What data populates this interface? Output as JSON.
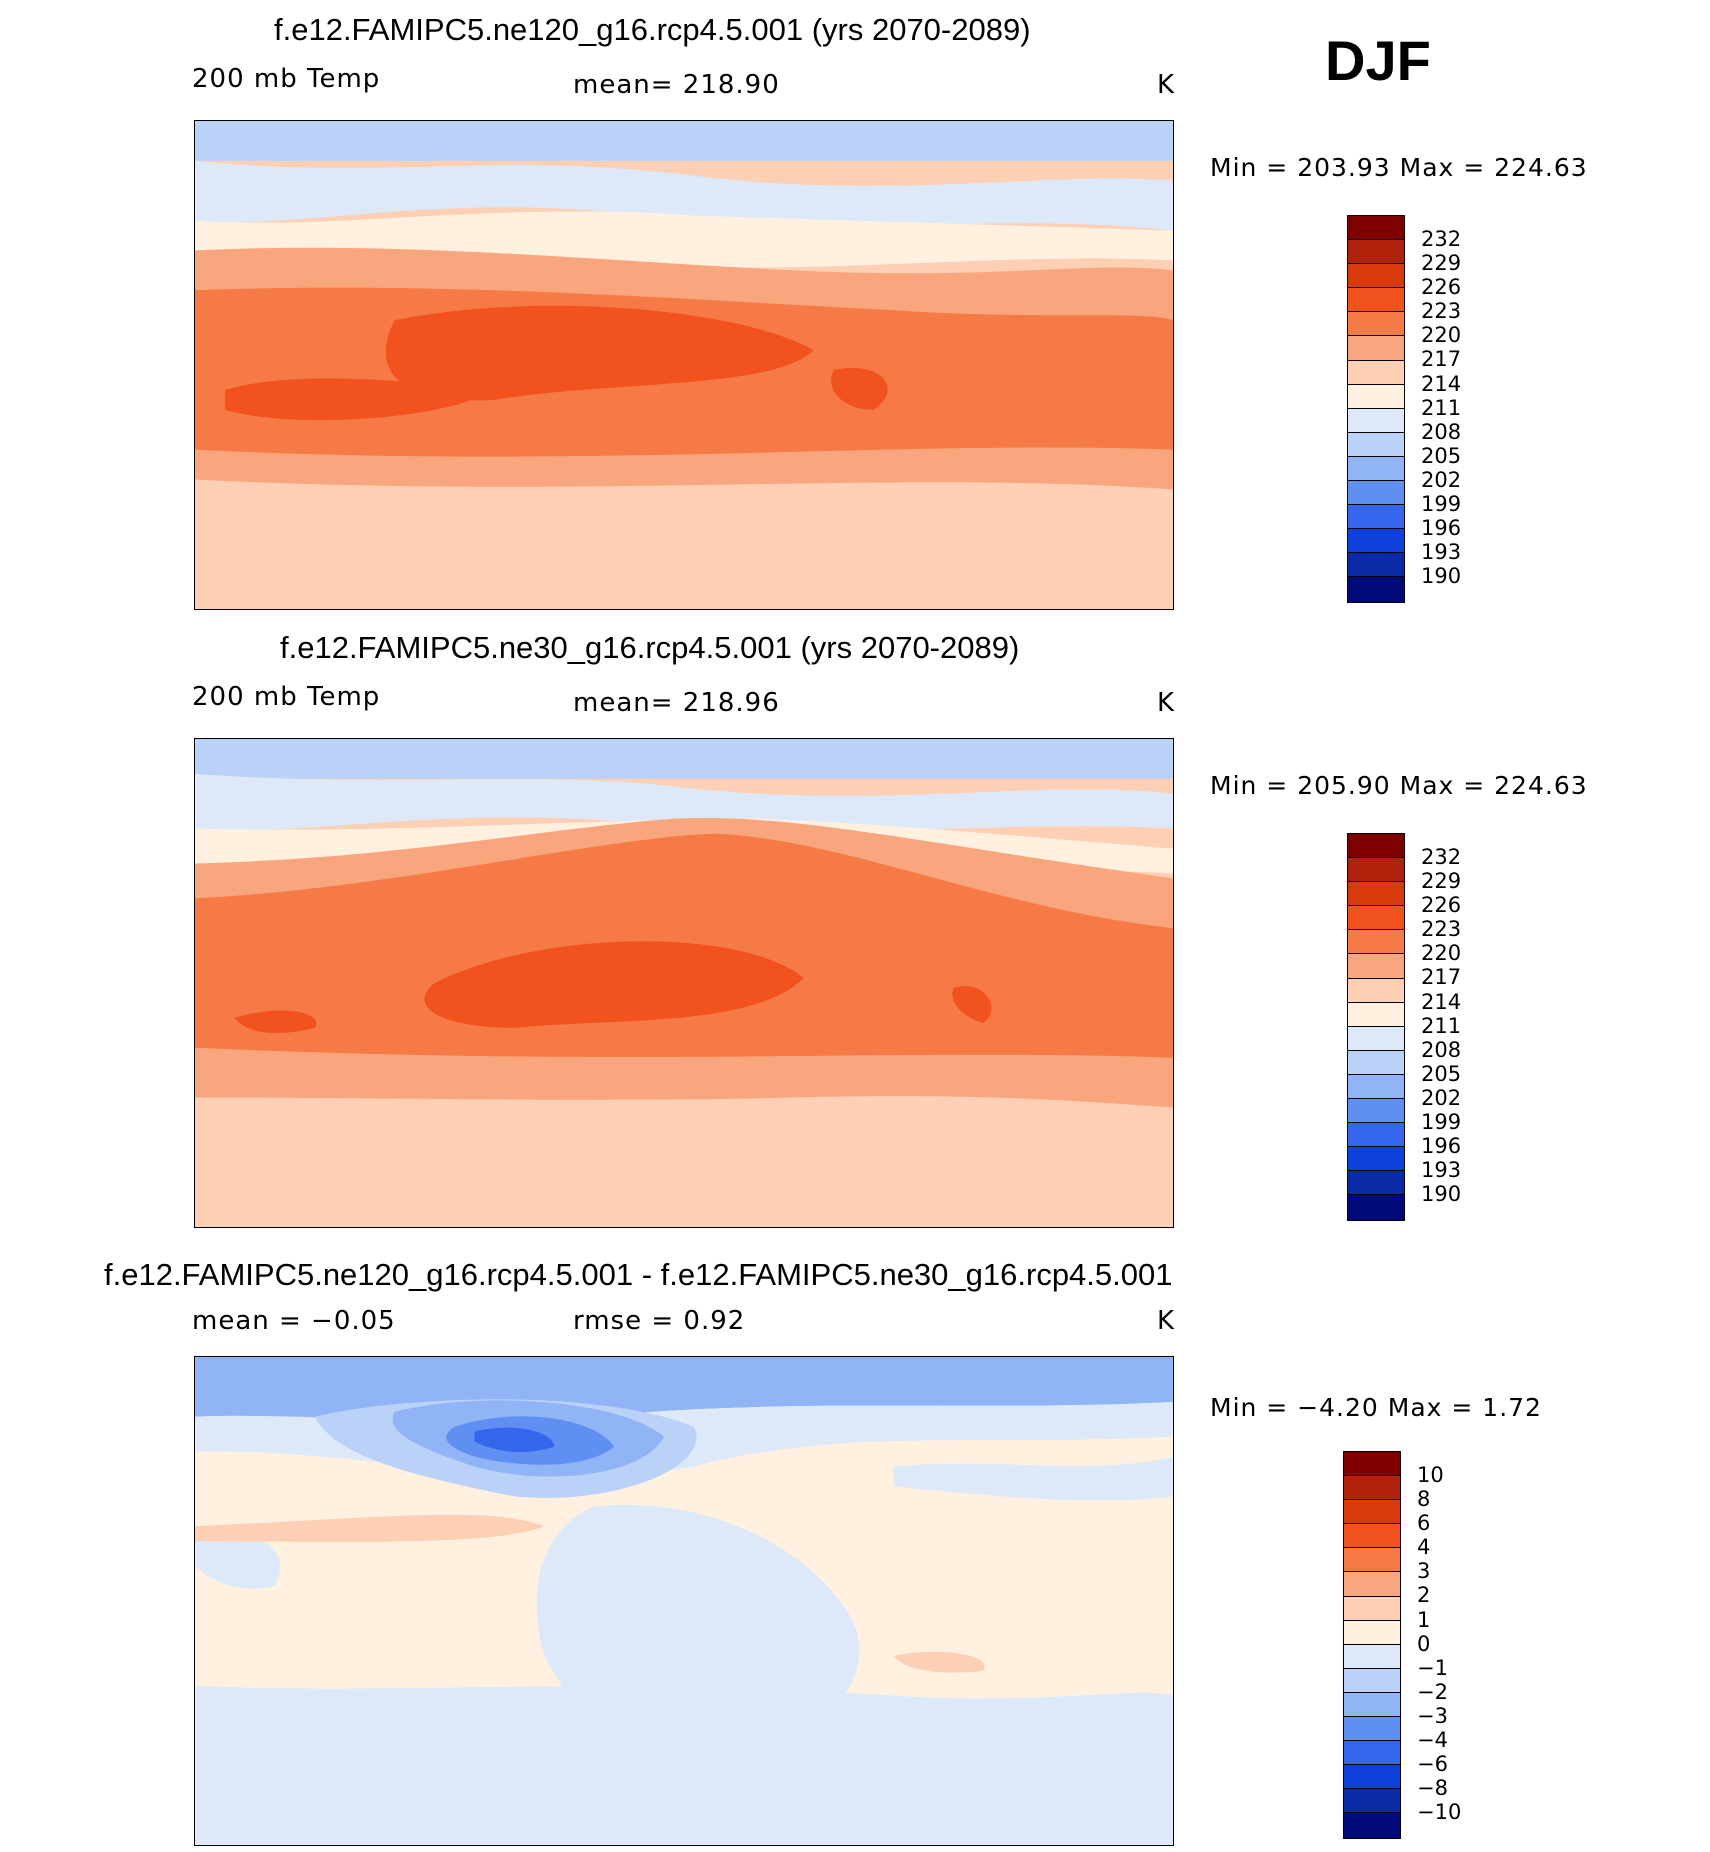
{
  "season": "DJF",
  "chart_data": [
    {
      "type": "heatmap",
      "title": "f.e12.FAMIPC5.ne120_g16.rcp4.5.001 (yrs 2070-2089)",
      "variable": "200 mb Temp",
      "stat_label": "mean= 218.90",
      "units": "K",
      "min_max": "Min = 203.93 Max = 224.63",
      "min": 203.93,
      "max": 224.63,
      "mean": 218.9,
      "colorbar_levels": [
        "232",
        "229",
        "226",
        "223",
        "220",
        "217",
        "214",
        "211",
        "208",
        "205",
        "202",
        "199",
        "196",
        "193",
        "190"
      ],
      "colorbar_colors": [
        "#800000",
        "#b0220c",
        "#d83a0e",
        "#f2521d",
        "#f57a45",
        "#f9a57e",
        "#fdd0b6",
        "#fff0e0",
        "#dde9f8",
        "#bad2f7",
        "#91b4f7",
        "#5f8ff3",
        "#3567ec",
        "#1040dc",
        "#0a2aa6",
        "#000a7a"
      ]
    },
    {
      "type": "heatmap",
      "title": "f.e12.FAMIPC5.ne30_g16.rcp4.5.001 (yrs 2070-2089)",
      "variable": "200 mb Temp",
      "stat_label": "mean= 218.96",
      "units": "K",
      "min_max": "Min = 205.90 Max = 224.63",
      "min": 205.9,
      "max": 224.63,
      "mean": 218.96,
      "colorbar_levels": [
        "232",
        "229",
        "226",
        "223",
        "220",
        "217",
        "214",
        "211",
        "208",
        "205",
        "202",
        "199",
        "196",
        "193",
        "190"
      ],
      "colorbar_colors": [
        "#800000",
        "#b0220c",
        "#d83a0e",
        "#f2521d",
        "#f57a45",
        "#f9a57e",
        "#fdd0b6",
        "#fff0e0",
        "#dde9f8",
        "#bad2f7",
        "#91b4f7",
        "#5f8ff3",
        "#3567ec",
        "#1040dc",
        "#0a2aa6",
        "#000a7a"
      ]
    },
    {
      "type": "heatmap",
      "title": "f.e12.FAMIPC5.ne120_g16.rcp4.5.001 - f.e12.FAMIPC5.ne30_g16.rcp4.5.001",
      "variable": "mean =   −0.05",
      "stat_label": "rmse =    0.92",
      "units": "K",
      "min_max": "Min =   −4.20 Max =    1.72",
      "min": -4.2,
      "max": 1.72,
      "mean": -0.05,
      "rmse": 0.92,
      "colorbar_levels": [
        "10",
        "8",
        "6",
        "4",
        "3",
        "2",
        "1",
        "0",
        "−1",
        "−2",
        "−3",
        "−4",
        "−6",
        "−8",
        "−10"
      ],
      "colorbar_colors": [
        "#800000",
        "#b0220c",
        "#d83a0e",
        "#f2521d",
        "#f57a45",
        "#f9a57e",
        "#fdd0b6",
        "#fff0e0",
        "#dde9f8",
        "#bad2f7",
        "#91b4f7",
        "#5f8ff3",
        "#3567ec",
        "#1040dc",
        "#0a2aa6",
        "#000a7a"
      ]
    }
  ]
}
